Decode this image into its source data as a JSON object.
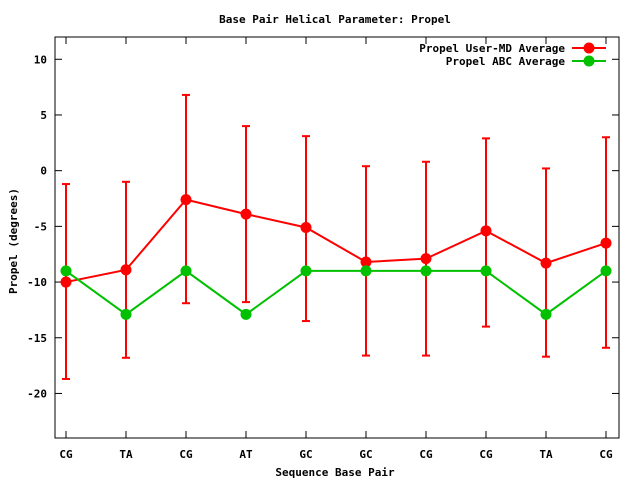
{
  "chart_data": {
    "type": "line",
    "title": "Base Pair Helical Parameter: Propel",
    "xlabel": "Sequence Base Pair",
    "ylabel": "Propel (degrees)",
    "categories": [
      "CG",
      "TA",
      "CG",
      "AT",
      "GC",
      "GC",
      "CG",
      "CG",
      "TA",
      "CG"
    ],
    "ylim": [
      -24,
      12
    ],
    "yticks": [
      10,
      5,
      0,
      -5,
      -10,
      -15,
      -20
    ],
    "grid": false,
    "legend_position": "top-right",
    "series": [
      {
        "name": "Propel User-MD Average",
        "color": "#ff0000",
        "values": [
          -10.0,
          -8.9,
          -2.6,
          -3.9,
          -5.1,
          -8.2,
          -7.9,
          -5.4,
          -8.3,
          -6.5
        ],
        "error_low": [
          -18.7,
          -16.8,
          -11.9,
          -11.8,
          -13.5,
          -16.6,
          -16.6,
          -14.0,
          -16.7,
          -15.9
        ],
        "error_high": [
          -1.2,
          -1.0,
          6.8,
          4.0,
          3.1,
          0.4,
          0.8,
          2.9,
          0.2,
          3.0
        ]
      },
      {
        "name": "Propel ABC Average",
        "color": "#00c000",
        "values": [
          -9.0,
          -12.9,
          -9.0,
          -12.9,
          -9.0,
          -9.0,
          -9.0,
          -9.0,
          -12.9,
          -9.0
        ]
      }
    ]
  }
}
